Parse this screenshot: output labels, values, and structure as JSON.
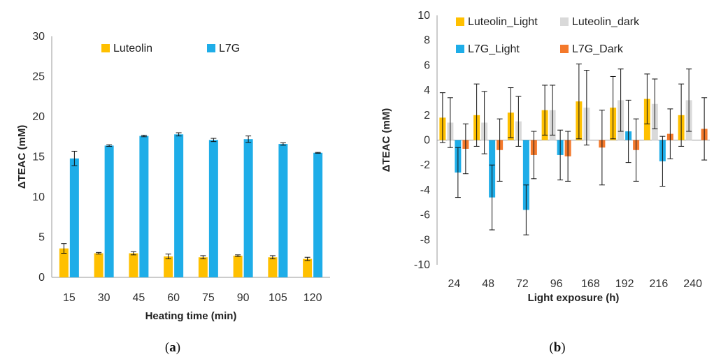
{
  "chart_data": [
    {
      "id": "a",
      "type": "bar",
      "panel_label": "a",
      "xlabel": "Heating time (min)",
      "ylabel": "ΔTEAC (mM)",
      "ylim": [
        0,
        30
      ],
      "yticks": [
        0,
        5,
        10,
        15,
        20,
        25,
        30
      ],
      "categories": [
        "15",
        "30",
        "45",
        "60",
        "75",
        "90",
        "105",
        "120"
      ],
      "grid": false,
      "legend_position": "top",
      "series": [
        {
          "name": "Luteolin",
          "color": "#FFC000",
          "values": [
            3.6,
            3.0,
            3.0,
            2.6,
            2.5,
            2.7,
            2.5,
            2.3
          ],
          "errors": [
            0.6,
            0.1,
            0.2,
            0.3,
            0.2,
            0.1,
            0.2,
            0.2
          ]
        },
        {
          "name": "L7G",
          "color": "#1EADE8",
          "values": [
            14.8,
            16.4,
            17.6,
            17.8,
            17.1,
            17.2,
            16.6,
            15.5
          ],
          "errors": [
            0.9,
            0.1,
            0.1,
            0.2,
            0.2,
            0.4,
            0.15,
            0.05
          ]
        }
      ]
    },
    {
      "id": "b",
      "type": "bar",
      "panel_label": "b",
      "xlabel": "Light exposure (h)",
      "ylabel": "ΔTEAC (mM)",
      "ylim": [
        -10,
        10
      ],
      "yticks": [
        -10,
        -8,
        -6,
        -4,
        -2,
        0,
        2,
        4,
        6,
        8,
        10
      ],
      "categories": [
        "24",
        "48",
        "72",
        "96",
        "168",
        "192",
        "216",
        "240"
      ],
      "grid": false,
      "legend_position": "top",
      "series": [
        {
          "name": "Luteolin_Light",
          "color": "#FFC000",
          "values": [
            1.8,
            2.0,
            2.2,
            2.4,
            3.1,
            2.6,
            3.3,
            2.0
          ],
          "errors": [
            2.0,
            2.5,
            2.0,
            2.0,
            3.0,
            2.5,
            2.0,
            2.5
          ]
        },
        {
          "name": "Luteolin_dark",
          "color": "#D9D9D9",
          "values": [
            1.4,
            1.4,
            1.5,
            2.4,
            2.6,
            3.2,
            2.9,
            3.2
          ],
          "errors": [
            2.0,
            2.5,
            2.0,
            2.0,
            3.0,
            2.5,
            2.0,
            2.5
          ]
        },
        {
          "name": "L7G_Light",
          "color": "#1EADE8",
          "values": [
            -2.6,
            -4.6,
            -5.6,
            -1.2,
            0.0,
            0.7,
            -1.7,
            0.0
          ],
          "errors": [
            2.0,
            2.6,
            2.0,
            2.0,
            0.0,
            2.5,
            2.0,
            0.0
          ]
        },
        {
          "name": "L7G_Dark",
          "color": "#F4792B",
          "values": [
            -0.7,
            -0.8,
            -1.2,
            -1.3,
            -0.6,
            -0.8,
            0.5,
            0.9
          ],
          "errors": [
            2.0,
            2.5,
            1.9,
            2.0,
            3.0,
            2.5,
            2.0,
            2.5
          ]
        }
      ]
    }
  ]
}
